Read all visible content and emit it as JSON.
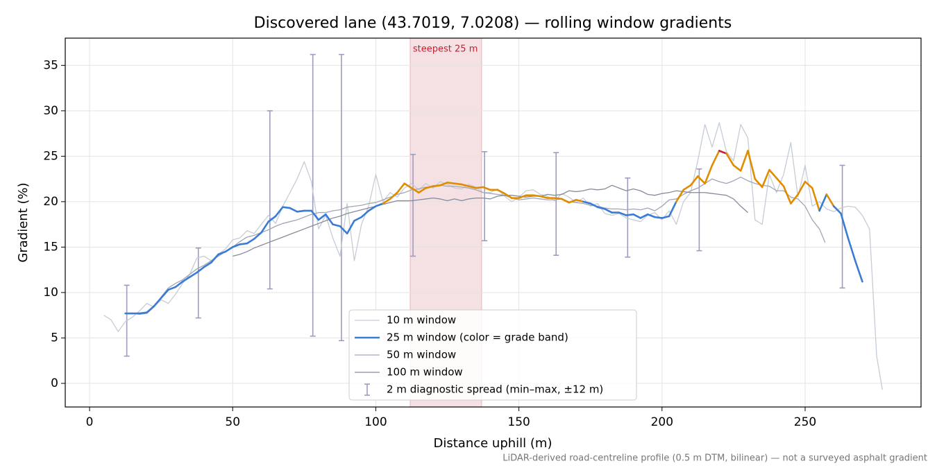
{
  "chart_data": {
    "type": "line",
    "title": "Discovered lane (43.7019, 7.0208) — rolling window gradients",
    "x_label": "Distance uphill (m)",
    "y_label": "Gradient (%)",
    "footnote": "LiDAR-derived road-centreline profile (0.5 m DTM, bilinear) — not a surveyed asphalt gradient",
    "xlim": [
      -8.5,
      290.5
    ],
    "ylim": [
      -2.6,
      38
    ],
    "xticks": [
      0,
      50,
      100,
      150,
      200,
      250
    ],
    "yticks": [
      0,
      5,
      10,
      15,
      20,
      25,
      30,
      35
    ],
    "grid": true,
    "legend": "lower center",
    "highlight": {
      "text": "steepest 25 m",
      "x0": 112,
      "x1": 137,
      "color": "#e8b5bc"
    },
    "series": [
      {
        "name": "10 m window",
        "color": "#c5ccd6",
        "width": 1.3,
        "x": [
          5,
          7.5,
          10,
          12.5,
          15,
          17.5,
          20,
          22.5,
          25,
          27.5,
          30,
          32.5,
          35,
          37.5,
          40,
          42.5,
          45,
          47.5,
          50,
          52.5,
          55,
          57.5,
          60,
          62.5,
          65,
          67.5,
          70,
          72.5,
          75,
          77.5,
          80,
          82.5,
          85,
          87.5,
          90,
          92.5,
          95,
          97.5,
          100,
          102.5,
          105,
          107.5,
          110,
          112.5,
          115,
          117.5,
          120,
          122.5,
          125,
          127.5,
          130,
          132.5,
          135,
          137.5,
          140,
          142.5,
          145,
          147.5,
          150,
          152.5,
          155,
          157.5,
          160,
          162.5,
          165,
          167.5,
          170,
          172.5,
          175,
          177.5,
          180,
          182.5,
          185,
          187.5,
          190,
          192.5,
          195,
          197.5,
          200,
          202.5,
          205,
          207.5,
          210,
          212.5,
          215,
          217.5,
          220,
          222.5,
          225,
          227.5,
          230,
          232.5,
          235,
          237.5,
          240,
          242.5,
          245,
          247.5,
          250,
          252.5,
          255,
          257.5,
          260,
          262.5,
          265,
          267.5,
          270,
          272.5,
          275,
          277
        ],
        "values": [
          7.5,
          7.0,
          5.7,
          6.8,
          7.3,
          8.0,
          8.8,
          8.4,
          9.2,
          8.8,
          9.8,
          11.0,
          12.0,
          13.8,
          14.0,
          13.5,
          14.2,
          14.8,
          15.8,
          16.0,
          16.8,
          16.5,
          17.5,
          18.5,
          17.6,
          19.5,
          21.0,
          22.5,
          24.4,
          22.2,
          17.0,
          18.5,
          16.0,
          14.0,
          19.8,
          13.5,
          17.5,
          19.5,
          23.0,
          20.0,
          21.0,
          20.5,
          21.5,
          22.0,
          21.3,
          22.0,
          21.5,
          22.2,
          21.9,
          21.5,
          21.4,
          21.9,
          21.6,
          21.0,
          21.0,
          21.4,
          20.6,
          20.0,
          20.5,
          21.2,
          21.3,
          20.8,
          20.6,
          20.1,
          20.9,
          20.5,
          19.9,
          20.4,
          19.5,
          19.8,
          18.7,
          18.5,
          18.7,
          18.2,
          18.0,
          17.8,
          18.5,
          18.8,
          18.0,
          19.0,
          17.5,
          20.0,
          21.0,
          24.5,
          28.5,
          26.0,
          28.7,
          25.5,
          24.5,
          28.5,
          27.0,
          18.0,
          17.5,
          23.0,
          21.0,
          23.0,
          26.5,
          20.5,
          24.0,
          19.5,
          20.0,
          19.2,
          18.9,
          19.3,
          19.5,
          19.4,
          18.5,
          17.0,
          3.0,
          -0.7
        ]
      },
      {
        "name": "25 m window (color = grade band)",
        "color": "#3a7bd5",
        "width": 2.6,
        "color_bands": [
          {
            "max": 20,
            "color": "#3a7bd5"
          },
          {
            "max": 25,
            "color": "#e08c00"
          },
          {
            "color": "#c62030"
          }
        ],
        "x": [
          12.5,
          15,
          17.5,
          20,
          22.5,
          25,
          27.5,
          30,
          32.5,
          35,
          37.5,
          40,
          42.5,
          45,
          47.5,
          50,
          52.5,
          55,
          57.5,
          60,
          62.5,
          65,
          67.5,
          70,
          72.5,
          75,
          77.5,
          80,
          82.5,
          85,
          87.5,
          90,
          92.5,
          95,
          97.5,
          100,
          102.5,
          105,
          107.5,
          110,
          112.5,
          115,
          117.5,
          120,
          122.5,
          125,
          127.5,
          130,
          132.5,
          135,
          137.5,
          140,
          142.5,
          145,
          147.5,
          150,
          152.5,
          155,
          157.5,
          160,
          162.5,
          165,
          167.5,
          170,
          172.5,
          175,
          177.5,
          180,
          182.5,
          185,
          187.5,
          190,
          192.5,
          195,
          197.5,
          200,
          202.5,
          205,
          207.5,
          210,
          212.5,
          215,
          217.5,
          220,
          222.5,
          225,
          227.5,
          230,
          232.5,
          235,
          237.5,
          240,
          242.5,
          245,
          247.5,
          250,
          252.5,
          255,
          257.5,
          260,
          262.5,
          265,
          267.5,
          270
        ],
        "values": [
          7.7,
          7.7,
          7.7,
          7.8,
          8.5,
          9.4,
          10.3,
          10.6,
          11.2,
          11.7,
          12.2,
          12.8,
          13.3,
          14.2,
          14.5,
          15.0,
          15.3,
          15.4,
          15.9,
          16.6,
          17.8,
          18.4,
          19.4,
          19.3,
          18.9,
          19.0,
          19.0,
          18.0,
          18.6,
          17.5,
          17.3,
          16.5,
          17.9,
          18.3,
          19.0,
          19.5,
          19.8,
          20.3,
          21.0,
          22.0,
          21.5,
          21.0,
          21.5,
          21.7,
          21.8,
          22.1,
          22.0,
          21.9,
          21.7,
          21.5,
          21.6,
          21.3,
          21.3,
          20.9,
          20.4,
          20.4,
          20.7,
          20.7,
          20.6,
          20.4,
          20.4,
          20.3,
          19.9,
          20.2,
          20.0,
          19.8,
          19.4,
          19.2,
          18.8,
          18.8,
          18.5,
          18.6,
          18.2,
          18.6,
          18.3,
          18.2,
          18.4,
          20.0,
          21.3,
          21.8,
          22.8,
          22.0,
          24.0,
          25.6,
          25.3,
          24.0,
          23.4,
          25.6,
          22.5,
          21.6,
          23.5,
          22.6,
          21.7,
          19.8,
          20.8,
          22.2,
          21.5,
          19.0,
          20.8,
          19.5,
          18.7,
          16.0,
          13.5,
          11.2
        ]
      },
      {
        "name": "50 m window",
        "color": "#a0a6b4",
        "width": 1.3,
        "x": [
          12.5,
          15,
          17.5,
          20,
          22.5,
          25,
          27.5,
          30,
          32.5,
          35,
          37.5,
          40,
          42.5,
          45,
          47.5,
          50,
          52.5,
          55,
          57.5,
          60,
          62.5,
          65,
          67.5,
          70,
          72.5,
          75,
          77.5,
          80,
          82.5,
          85,
          87.5,
          90,
          92.5,
          95,
          97.5,
          100,
          102.5,
          105,
          107.5,
          110,
          112.5,
          115,
          117.5,
          120,
          122.5,
          125,
          127.5,
          130,
          132.5,
          135,
          137.5,
          140,
          142.5,
          145,
          147.5,
          150,
          152.5,
          155,
          157.5,
          160,
          162.5,
          165,
          167.5,
          170,
          172.5,
          175,
          177.5,
          180,
          182.5,
          185,
          187.5,
          190,
          192.5,
          195,
          197.5,
          200,
          202.5,
          205,
          207.5,
          210,
          212.5,
          215,
          217.5,
          220,
          222.5,
          225,
          227.5,
          230,
          232.5,
          235,
          237.5,
          240,
          242.5,
          245,
          247.5,
          250,
          252.5,
          255,
          257
        ],
        "values": [
          7.7,
          7.7,
          7.6,
          7.7,
          8.4,
          9.5,
          10.5,
          11.0,
          11.4,
          12.0,
          12.6,
          13.0,
          13.5,
          14.0,
          14.5,
          15.0,
          15.6,
          16.1,
          16.3,
          16.6,
          16.9,
          17.3,
          17.6,
          17.8,
          18.0,
          18.3,
          18.6,
          18.8,
          18.8,
          19.0,
          19.1,
          19.4,
          19.5,
          19.6,
          19.8,
          19.9,
          20.2,
          20.5,
          20.8,
          21.0,
          21.3,
          21.4,
          21.6,
          21.6,
          21.8,
          21.7,
          21.7,
          21.6,
          21.5,
          21.3,
          21.0,
          20.9,
          20.8,
          20.7,
          20.4,
          20.2,
          20.3,
          20.4,
          20.3,
          20.2,
          20.2,
          20.3,
          20.0,
          19.9,
          19.8,
          19.6,
          19.5,
          19.3,
          19.2,
          19.2,
          19.1,
          19.2,
          19.1,
          19.3,
          19.0,
          19.5,
          20.2,
          20.3,
          20.8,
          21.2,
          21.5,
          22.0,
          22.5,
          22.2,
          22.0,
          22.3,
          22.7,
          22.3,
          22.0,
          21.8,
          21.7,
          21.2,
          21.2,
          20.5,
          20.3,
          19.5,
          18.0,
          17.0,
          15.5
        ]
      },
      {
        "name": "100 m window",
        "color": "#858b99",
        "width": 1.3,
        "x": [
          50,
          52.5,
          55,
          57.5,
          60,
          62.5,
          65,
          67.5,
          70,
          72.5,
          75,
          77.5,
          80,
          82.5,
          85,
          87.5,
          90,
          92.5,
          95,
          97.5,
          100,
          102.5,
          105,
          107.5,
          110,
          112.5,
          115,
          117.5,
          120,
          122.5,
          125,
          127.5,
          130,
          132.5,
          135,
          137.5,
          140,
          142.5,
          145,
          147.5,
          150,
          152.5,
          155,
          157.5,
          160,
          162.5,
          165,
          167.5,
          170,
          172.5,
          175,
          177.5,
          180,
          182.5,
          185,
          187.5,
          190,
          192.5,
          195,
          197.5,
          200,
          202.5,
          205,
          207.5,
          210,
          212.5,
          215,
          217.5,
          220,
          222.5,
          225,
          227.5,
          230
        ],
        "values": [
          14.0,
          14.2,
          14.5,
          14.9,
          15.2,
          15.5,
          15.8,
          16.1,
          16.4,
          16.7,
          17.0,
          17.3,
          17.6,
          17.9,
          18.2,
          18.4,
          18.7,
          18.9,
          19.1,
          19.3,
          19.5,
          19.7,
          19.9,
          20.1,
          20.1,
          20.1,
          20.2,
          20.3,
          20.4,
          20.3,
          20.1,
          20.3,
          20.1,
          20.3,
          20.4,
          20.4,
          20.3,
          20.6,
          20.7,
          20.7,
          20.6,
          20.5,
          20.6,
          20.6,
          20.8,
          20.7,
          20.8,
          21.2,
          21.1,
          21.2,
          21.4,
          21.3,
          21.4,
          21.8,
          21.5,
          21.2,
          21.4,
          21.2,
          20.8,
          20.7,
          20.9,
          21.0,
          21.2,
          21.1,
          21.0,
          21.0,
          21.0,
          20.9,
          20.8,
          20.7,
          20.3,
          19.5,
          18.8
        ]
      }
    ],
    "errorbars": {
      "name": "2 m diagnostic spread (min–max, ±12 m)",
      "color": "#9d9cbf",
      "x": [
        13,
        38,
        63,
        78,
        88,
        113,
        138,
        163,
        188,
        213,
        263
      ],
      "low": [
        3.0,
        7.2,
        10.4,
        5.2,
        4.7,
        14.0,
        15.7,
        14.1,
        13.9,
        14.6,
        10.5
      ],
      "high": [
        10.8,
        14.9,
        30.0,
        36.2,
        36.2,
        25.2,
        25.5,
        25.4,
        22.6,
        23.6,
        24.0
      ]
    }
  }
}
